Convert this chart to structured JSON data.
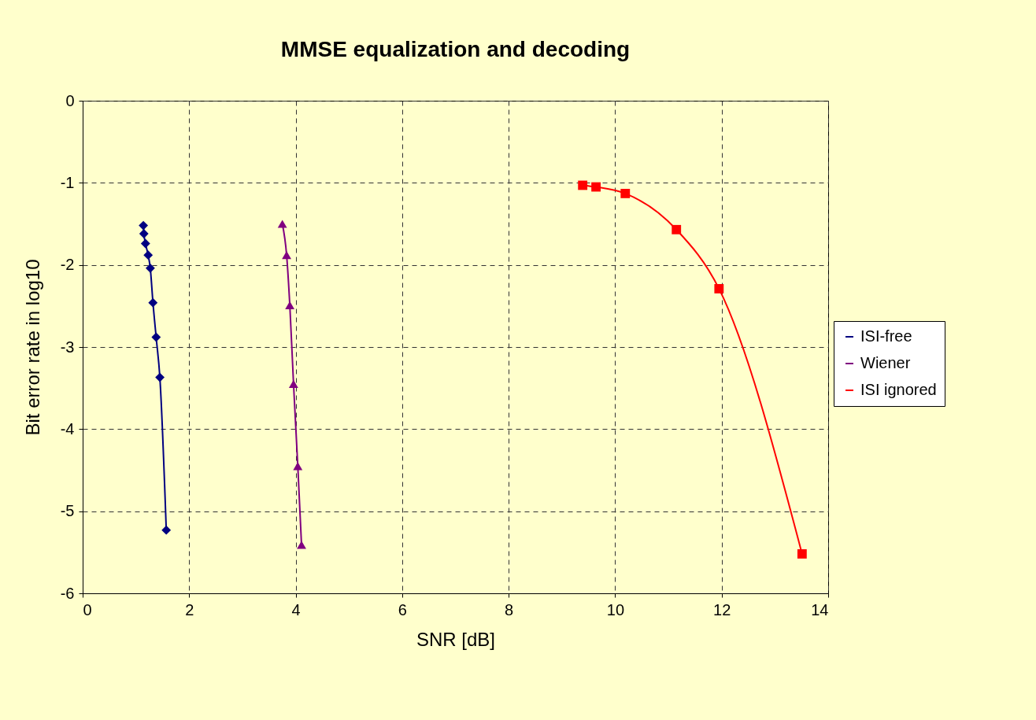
{
  "chart_data": {
    "type": "line",
    "title": "MMSE equalization and decoding",
    "xlabel": "SNR [dB]",
    "ylabel": "Bit error rate in log10",
    "xlim": [
      0,
      14
    ],
    "xticks": [
      0,
      2,
      4,
      6,
      8,
      10,
      12,
      14
    ],
    "ylim": [
      -6,
      0
    ],
    "yticks": [
      -6,
      -5,
      -4,
      -3,
      -2,
      -1,
      0
    ],
    "grid": true,
    "legend": "right",
    "series": [
      {
        "name": "ISI-free",
        "color": "#000080",
        "marker": "diamond",
        "x": [
          1.14,
          1.15,
          1.18,
          1.23,
          1.27,
          1.32,
          1.38,
          1.45,
          1.57
        ],
        "values": [
          -1.52,
          -1.62,
          -1.74,
          -1.88,
          -2.04,
          -2.46,
          -2.88,
          -3.37,
          -5.23
        ]
      },
      {
        "name": "Wiener",
        "color": "#800080",
        "marker": "triangle",
        "x": [
          3.75,
          3.83,
          3.89,
          3.96,
          4.04,
          4.11
        ],
        "values": [
          -1.5,
          -1.88,
          -2.49,
          -3.45,
          -4.45,
          -5.41
        ]
      },
      {
        "name": "ISI ignored",
        "color": "#ff0000",
        "marker": "square",
        "x": [
          9.39,
          9.64,
          10.19,
          11.15,
          11.95,
          13.51
        ],
        "values": [
          -1.03,
          -1.05,
          -1.13,
          -1.57,
          -2.29,
          -5.52
        ]
      }
    ]
  }
}
